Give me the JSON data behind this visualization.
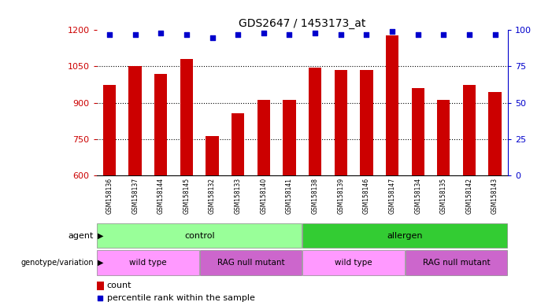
{
  "title": "GDS2647 / 1453173_at",
  "samples": [
    "GSM158136",
    "GSM158137",
    "GSM158144",
    "GSM158145",
    "GSM158132",
    "GSM158133",
    "GSM158140",
    "GSM158141",
    "GSM158138",
    "GSM158139",
    "GSM158146",
    "GSM158147",
    "GSM158134",
    "GSM158135",
    "GSM158142",
    "GSM158143"
  ],
  "counts": [
    975,
    1052,
    1020,
    1080,
    762,
    855,
    910,
    910,
    1045,
    1035,
    1035,
    1180,
    960,
    912,
    972,
    945
  ],
  "percentiles": [
    97,
    97,
    98,
    97,
    95,
    97,
    98,
    97,
    98,
    97,
    97,
    99,
    97,
    97,
    97,
    97
  ],
  "ylim_left": [
    600,
    1200
  ],
  "yticks_left": [
    600,
    750,
    900,
    1050,
    1200
  ],
  "ylim_right": [
    0,
    100
  ],
  "yticks_right": [
    0,
    25,
    50,
    75,
    100
  ],
  "bar_color": "#cc0000",
  "dot_color": "#0000cc",
  "agent_labels": [
    {
      "text": "control",
      "start": 0,
      "end": 8,
      "color": "#99ff99"
    },
    {
      "text": "allergen",
      "start": 8,
      "end": 16,
      "color": "#33cc33"
    }
  ],
  "genotype_labels": [
    {
      "text": "wild type",
      "start": 0,
      "end": 4,
      "color": "#ff99ff"
    },
    {
      "text": "RAG null mutant",
      "start": 4,
      "end": 8,
      "color": "#cc66cc"
    },
    {
      "text": "wild type",
      "start": 8,
      "end": 12,
      "color": "#ff99ff"
    },
    {
      "text": "RAG null mutant",
      "start": 12,
      "end": 16,
      "color": "#cc66cc"
    }
  ],
  "agent_row_label": "agent",
  "genotype_row_label": "genotype/variation",
  "legend_count_label": "count",
  "legend_percentile_label": "percentile rank within the sample",
  "background_color": "#ffffff",
  "tick_label_color_left": "#cc0000",
  "tick_label_color_right": "#0000cc",
  "grid_dotted_vals": [
    750,
    900,
    1050
  ],
  "xtick_bg_color": "#dddddd"
}
